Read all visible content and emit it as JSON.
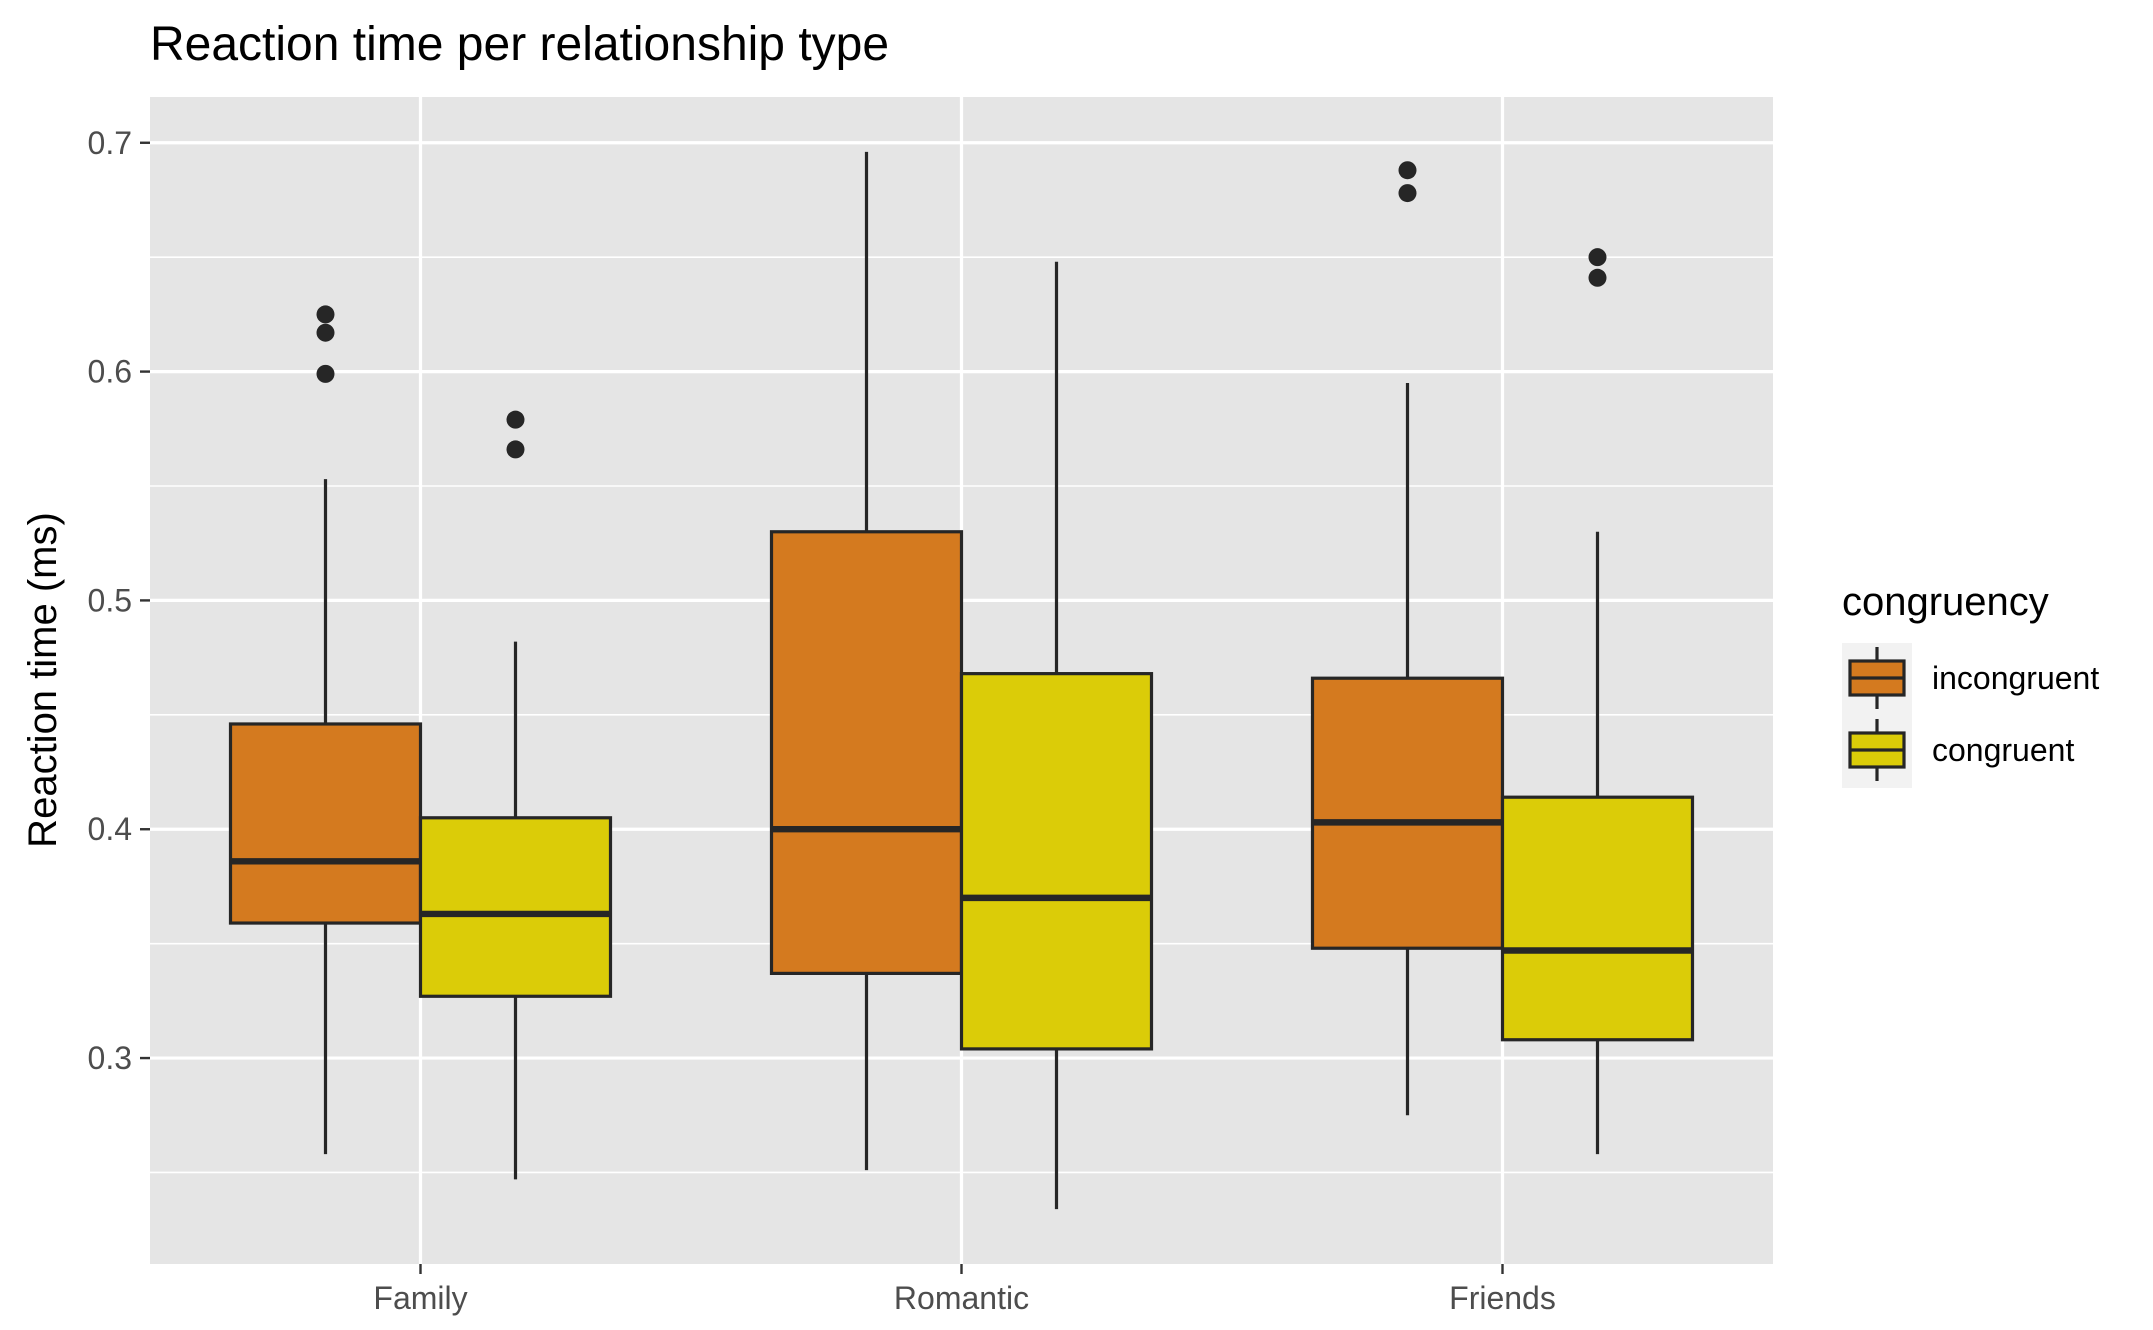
{
  "chart_data": {
    "type": "box",
    "title": "Reaction time per relationship type",
    "xlabel": "",
    "ylabel": "Reaction time (ms)",
    "categories": [
      "Family",
      "Romantic",
      "Friends"
    ],
    "ylim": [
      0.21,
      0.72
    ],
    "yticks": [
      0.3,
      0.4,
      0.5,
      0.6,
      0.7
    ],
    "ytick_labels": [
      "0.3",
      "0.4",
      "0.5",
      "0.6",
      "0.7"
    ],
    "grid": true,
    "legend": {
      "title": "congruency",
      "position": "right"
    },
    "series": [
      {
        "name": "incongruent",
        "color": "#D47A1F",
        "boxes": [
          {
            "whisker_low": 0.258,
            "q1": 0.359,
            "median": 0.386,
            "q3": 0.446,
            "whisker_high": 0.553,
            "outliers": [
              0.599,
              0.617,
              0.625
            ]
          },
          {
            "whisker_low": 0.251,
            "q1": 0.337,
            "median": 0.4,
            "q3": 0.53,
            "whisker_high": 0.696,
            "outliers": []
          },
          {
            "whisker_low": 0.275,
            "q1": 0.348,
            "median": 0.403,
            "q3": 0.466,
            "whisker_high": 0.595,
            "outliers": [
              0.678,
              0.688
            ]
          }
        ]
      },
      {
        "name": "congruent",
        "color": "#DBCC08",
        "boxes": [
          {
            "whisker_low": 0.247,
            "q1": 0.327,
            "median": 0.363,
            "q3": 0.405,
            "whisker_high": 0.482,
            "outliers": [
              0.566,
              0.579
            ]
          },
          {
            "whisker_low": 0.234,
            "q1": 0.304,
            "median": 0.37,
            "q3": 0.468,
            "whisker_high": 0.648,
            "outliers": []
          },
          {
            "whisker_low": 0.258,
            "q1": 0.308,
            "median": 0.347,
            "q3": 0.414,
            "whisker_high": 0.53,
            "outliers": [
              0.641,
              0.65
            ]
          }
        ]
      }
    ],
    "colors": {
      "panel_background": "#E5E5E5",
      "grid": "#FFFFFF",
      "box_outline": "#262626"
    }
  }
}
